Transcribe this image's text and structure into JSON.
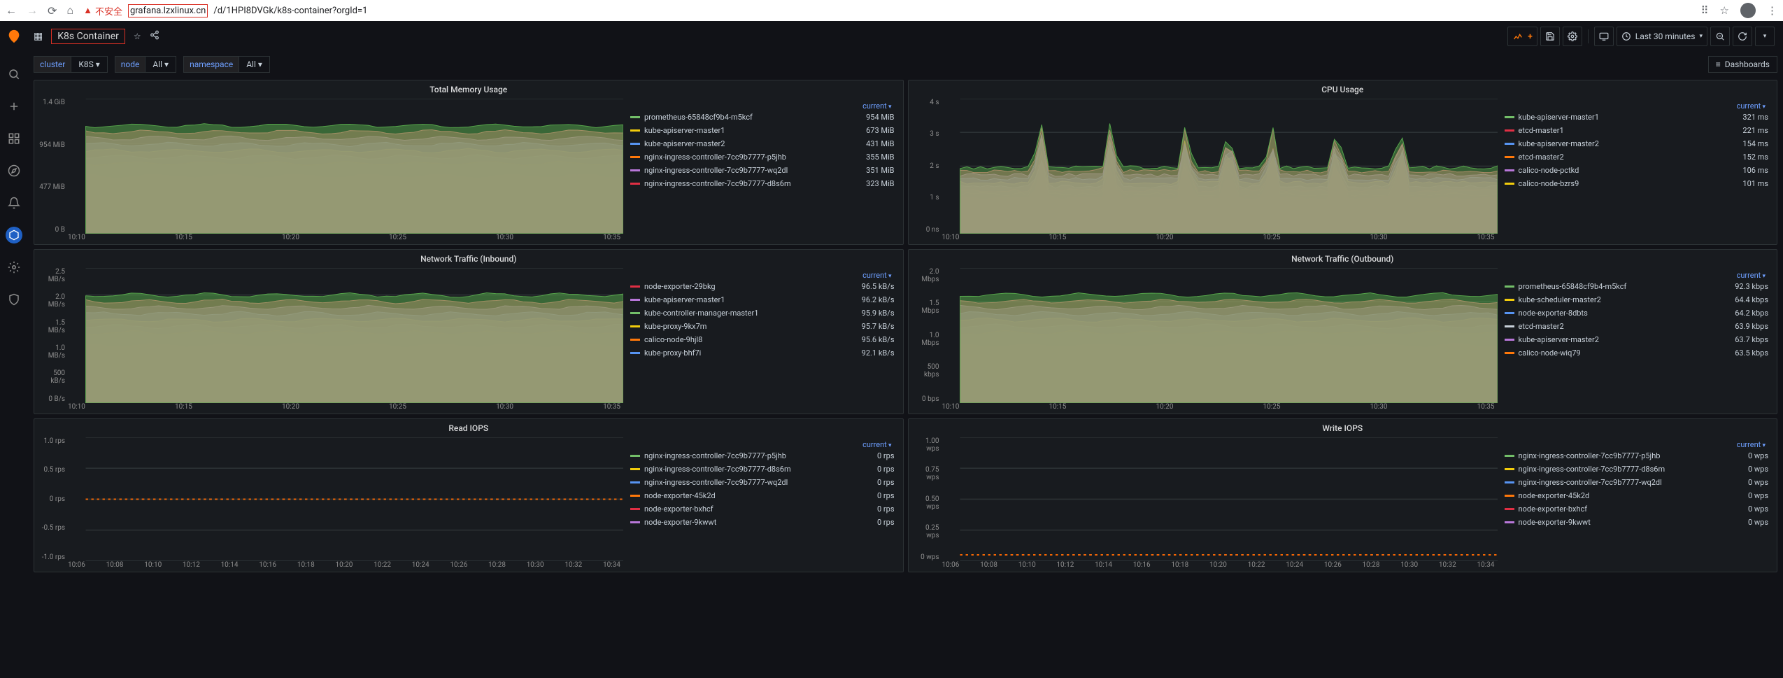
{
  "browser": {
    "insecure_label": "不安全",
    "url_highlighted": "grafana.lzxlinux.cn",
    "url_rest": "/d/1HPI8DVGk/k8s-container?orgId=1"
  },
  "header": {
    "dashboard_title": "K8s Container",
    "time_range": "Last 30 minutes"
  },
  "vars": [
    {
      "label": "cluster",
      "value": "K8S",
      "caret": true
    },
    {
      "label": "node",
      "value": "All",
      "caret": true
    },
    {
      "label": "namespace",
      "value": "All",
      "caret": true
    }
  ],
  "dashboards_btn": "Dashboards",
  "chart_palette": [
    "#73bf69",
    "#f2cc0c",
    "#5794f2",
    "#ff780a",
    "#b877d9",
    "#e02f44",
    "#37872d",
    "#fa6400",
    "#c0c0c0",
    "#fade2a",
    "#8ab8ff",
    "#ca95e5",
    "#ff7383",
    "#56a64b",
    "#f2cc0c",
    "#3274d9"
  ],
  "panels": [
    {
      "id": "mem",
      "title": "Total Memory Usage",
      "legend_header": "current",
      "y_ticks": [
        "1.4 GiB",
        "954 MiB",
        "477 MiB",
        "0 B"
      ],
      "x_ticks": [
        "10:10",
        "10:15",
        "10:20",
        "10:25",
        "10:30",
        "10:35"
      ],
      "chart_kind": "stacked-soft",
      "legend": [
        {
          "c": "#73bf69",
          "name": "prometheus-65848cf9b4-m5kcf",
          "v": "954 MiB"
        },
        {
          "c": "#f2cc0c",
          "name": "kube-apiserver-master1",
          "v": "673 MiB"
        },
        {
          "c": "#5794f2",
          "name": "kube-apiserver-master2",
          "v": "431 MiB"
        },
        {
          "c": "#ff780a",
          "name": "nginx-ingress-controller-7cc9b7777-p5jhb",
          "v": "355 MiB"
        },
        {
          "c": "#b877d9",
          "name": "nginx-ingress-controller-7cc9b7777-wq2dl",
          "v": "351 MiB"
        },
        {
          "c": "#e02f44",
          "name": "nginx-ingress-controller-7cc9b7777-d8s6m",
          "v": "323 MiB"
        }
      ]
    },
    {
      "id": "cpu",
      "title": "CPU Usage",
      "legend_header": "current",
      "y_ticks": [
        "4 s",
        "3 s",
        "2 s",
        "1 s",
        "0 ns"
      ],
      "x_ticks": [
        "10:10",
        "10:15",
        "10:20",
        "10:25",
        "10:30",
        "10:35"
      ],
      "chart_kind": "stacked-spiky",
      "legend": [
        {
          "c": "#73bf69",
          "name": "kube-apiserver-master1",
          "v": "321 ms"
        },
        {
          "c": "#e02f44",
          "name": "etcd-master1",
          "v": "221 ms"
        },
        {
          "c": "#5794f2",
          "name": "kube-apiserver-master2",
          "v": "154 ms"
        },
        {
          "c": "#ff780a",
          "name": "etcd-master2",
          "v": "152 ms"
        },
        {
          "c": "#b877d9",
          "name": "calico-node-pctkd",
          "v": "106 ms"
        },
        {
          "c": "#f2cc0c",
          "name": "calico-node-bzrs9",
          "v": "101 ms"
        }
      ]
    },
    {
      "id": "net_in",
      "title": "Network Traffic (Inbound)",
      "legend_header": "current",
      "y_ticks": [
        "2.5 MB/s",
        "2.0 MB/s",
        "1.5 MB/s",
        "1.0 MB/s",
        "500 kB/s",
        "0 B/s"
      ],
      "x_ticks": [
        "10:10",
        "10:15",
        "10:20",
        "10:25",
        "10:30",
        "10:35"
      ],
      "chart_kind": "stacked-soft",
      "legend": [
        {
          "c": "#e02f44",
          "name": "node-exporter-29bkg",
          "v": "96.5 kB/s"
        },
        {
          "c": "#b877d9",
          "name": "kube-apiserver-master1",
          "v": "96.2 kB/s"
        },
        {
          "c": "#73bf69",
          "name": "kube-controller-manager-master1",
          "v": "95.9 kB/s"
        },
        {
          "c": "#f2cc0c",
          "name": "kube-proxy-9kx7m",
          "v": "95.7 kB/s"
        },
        {
          "c": "#ff780a",
          "name": "calico-node-9hjl8",
          "v": "95.6 kB/s"
        },
        {
          "c": "#5794f2",
          "name": "kube-proxy-bhf7i",
          "v": "92.1 kB/s"
        }
      ]
    },
    {
      "id": "net_out",
      "title": "Network Traffic (Outbound)",
      "legend_header": "current",
      "y_ticks": [
        "2.0 Mbps",
        "1.5 Mbps",
        "1.0 Mbps",
        "500 kbps",
        "0 bps"
      ],
      "x_ticks": [
        "10:10",
        "10:15",
        "10:20",
        "10:25",
        "10:30",
        "10:35"
      ],
      "chart_kind": "stacked-soft",
      "legend": [
        {
          "c": "#73bf69",
          "name": "prometheus-65848cf9b4-m5kcf",
          "v": "92.3 kbps"
        },
        {
          "c": "#f2cc0c",
          "name": "kube-scheduler-master2",
          "v": "64.4 kbps"
        },
        {
          "c": "#5794f2",
          "name": "node-exporter-8dbts",
          "v": "64.2 kbps"
        },
        {
          "c": "#c7d0d9",
          "name": "etcd-master2",
          "v": "63.9 kbps"
        },
        {
          "c": "#b877d9",
          "name": "kube-apiserver-master2",
          "v": "63.7 kbps"
        },
        {
          "c": "#ff780a",
          "name": "calico-node-wiq79",
          "v": "63.5 kbps"
        }
      ]
    },
    {
      "id": "riops",
      "title": "Read IOPS",
      "legend_header": "current",
      "y_ticks": [
        "1.0 rps",
        "0.5 rps",
        "0 rps",
        "-0.5 rps",
        "-1.0 rps"
      ],
      "x_ticks": [
        "10:06",
        "10:08",
        "10:10",
        "10:12",
        "10:14",
        "10:16",
        "10:18",
        "10:20",
        "10:22",
        "10:24",
        "10:26",
        "10:28",
        "10:30",
        "10:32",
        "10:34"
      ],
      "chart_kind": "flatline-mid",
      "legend": [
        {
          "c": "#73bf69",
          "name": "nginx-ingress-controller-7cc9b7777-p5jhb",
          "v": "0 rps"
        },
        {
          "c": "#f2cc0c",
          "name": "nginx-ingress-controller-7cc9b7777-d8s6m",
          "v": "0 rps"
        },
        {
          "c": "#5794f2",
          "name": "nginx-ingress-controller-7cc9b7777-wq2dl",
          "v": "0 rps"
        },
        {
          "c": "#ff780a",
          "name": "node-exporter-45k2d",
          "v": "0 rps"
        },
        {
          "c": "#e02f44",
          "name": "node-exporter-bxhcf",
          "v": "0 rps"
        },
        {
          "c": "#b877d9",
          "name": "node-exporter-9kwwt",
          "v": "0 rps"
        }
      ]
    },
    {
      "id": "wiops",
      "title": "Write IOPS",
      "legend_header": "current",
      "y_ticks": [
        "1.00 wps",
        "0.75 wps",
        "0.50 wps",
        "0.25 wps",
        "0 wps"
      ],
      "x_ticks": [
        "10:06",
        "10:08",
        "10:10",
        "10:12",
        "10:14",
        "10:16",
        "10:18",
        "10:20",
        "10:22",
        "10:24",
        "10:26",
        "10:28",
        "10:30",
        "10:32",
        "10:34"
      ],
      "chart_kind": "flatline-bottom",
      "legend": [
        {
          "c": "#73bf69",
          "name": "nginx-ingress-controller-7cc9b7777-p5jhb",
          "v": "0 wps"
        },
        {
          "c": "#f2cc0c",
          "name": "nginx-ingress-controller-7cc9b7777-d8s6m",
          "v": "0 wps"
        },
        {
          "c": "#5794f2",
          "name": "nginx-ingress-controller-7cc9b7777-wq2dl",
          "v": "0 wps"
        },
        {
          "c": "#ff780a",
          "name": "node-exporter-45k2d",
          "v": "0 wps"
        },
        {
          "c": "#e02f44",
          "name": "node-exporter-bxhcf",
          "v": "0 wps"
        },
        {
          "c": "#b877d9",
          "name": "node-exporter-9kwwt",
          "v": "0 wps"
        }
      ]
    }
  ]
}
